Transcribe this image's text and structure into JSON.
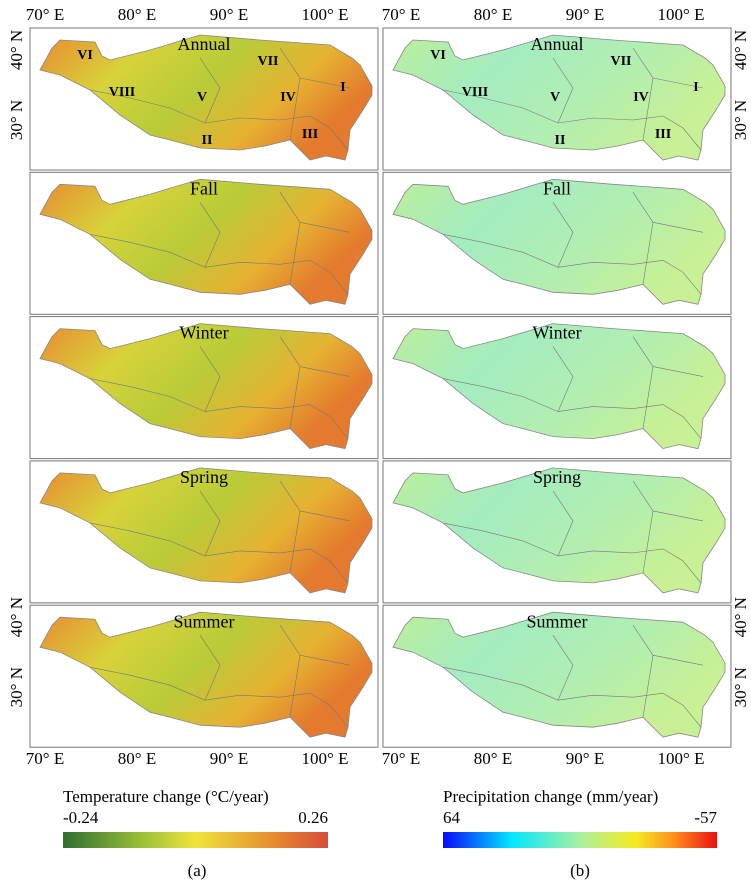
{
  "axes": {
    "longitude": [
      "70° E",
      "80° E",
      "90° E",
      "100° E"
    ],
    "latitude": [
      "40° N",
      "30° N"
    ]
  },
  "panels": [
    {
      "label": "(a)",
      "colorbar": {
        "title": "Temperature change (°C/year)",
        "min": "-0.24",
        "max": "0.26"
      },
      "maps": [
        {
          "title": "Annual",
          "regions": [
            "VI",
            "VII",
            "I",
            "VIII",
            "V",
            "IV",
            "II",
            "III"
          ]
        },
        {
          "title": "Fall"
        },
        {
          "title": "Winter"
        },
        {
          "title": "Spring"
        },
        {
          "title": "Summer"
        }
      ]
    },
    {
      "label": "(b)",
      "colorbar": {
        "title": "Precipitation change (mm/year)",
        "min": "64",
        "max": "-57"
      },
      "maps": [
        {
          "title": "Annual",
          "regions": [
            "VI",
            "VII",
            "I",
            "VIII",
            "V",
            "IV",
            "II",
            "III"
          ]
        },
        {
          "title": "Fall"
        },
        {
          "title": "Winter"
        },
        {
          "title": "Spring"
        },
        {
          "title": "Summer"
        }
      ]
    }
  ]
}
